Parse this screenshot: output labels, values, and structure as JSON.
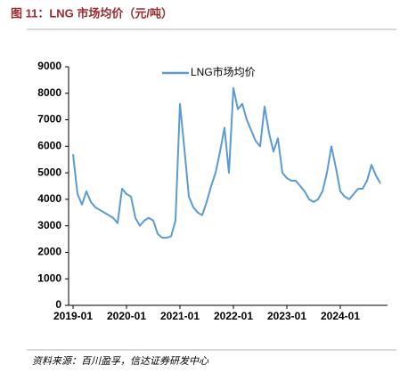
{
  "chart_data": {
    "type": "line",
    "title": "图 11：LNG 市场均价（元/吨）",
    "source": "资料来源：百川盈孚，信达证券研发中心",
    "x": [
      "2019-01",
      "2019-02",
      "2019-03",
      "2019-04",
      "2019-05",
      "2019-06",
      "2019-07",
      "2019-08",
      "2019-09",
      "2019-10",
      "2019-11",
      "2019-12",
      "2020-01",
      "2020-02",
      "2020-03",
      "2020-04",
      "2020-05",
      "2020-06",
      "2020-07",
      "2020-08",
      "2020-09",
      "2020-10",
      "2020-11",
      "2020-12",
      "2021-01",
      "2021-02",
      "2021-03",
      "2021-04",
      "2021-05",
      "2021-06",
      "2021-07",
      "2021-08",
      "2021-09",
      "2021-10",
      "2021-11",
      "2021-12",
      "2022-01",
      "2022-02",
      "2022-03",
      "2022-04",
      "2022-05",
      "2022-06",
      "2022-07",
      "2022-08",
      "2022-09",
      "2022-10",
      "2022-11",
      "2022-12",
      "2023-01",
      "2023-02",
      "2023-03",
      "2023-04",
      "2023-05",
      "2023-06",
      "2023-07",
      "2023-08",
      "2023-09",
      "2023-10",
      "2023-11",
      "2023-12",
      "2024-01",
      "2024-02",
      "2024-03",
      "2024-04",
      "2024-05",
      "2024-06",
      "2024-07",
      "2024-08",
      "2024-09",
      "2024-10"
    ],
    "series": [
      {
        "name": "LNG市场均价",
        "color": "#5b9bd5",
        "values": [
          5700,
          4200,
          3800,
          4300,
          3900,
          3700,
          3600,
          3500,
          3400,
          3300,
          3100,
          4400,
          4200,
          4100,
          3300,
          3000,
          3200,
          3300,
          3200,
          2700,
          2550,
          2550,
          2600,
          3200,
          7600,
          5900,
          4100,
          3700,
          3500,
          3400,
          3900,
          4500,
          5000,
          5800,
          6700,
          5000,
          8200,
          7400,
          7600,
          7000,
          6600,
          6200,
          6000,
          7500,
          6500,
          5800,
          6300,
          5000,
          4800,
          4700,
          4700,
          4500,
          4300,
          4000,
          3900,
          4000,
          4300,
          5000,
          6000,
          5200,
          4300,
          4100,
          4000,
          4200,
          4400,
          4400,
          4700,
          5300,
          4900,
          4600
        ]
      }
    ],
    "ylim": [
      0,
      9000
    ],
    "yticks": [
      0,
      1000,
      2000,
      3000,
      4000,
      5000,
      6000,
      7000,
      8000,
      9000
    ],
    "xticks": [
      "2019-01",
      "2020-01",
      "2021-01",
      "2022-01",
      "2023-01",
      "2024-01"
    ],
    "grid": false,
    "legend": "top"
  }
}
